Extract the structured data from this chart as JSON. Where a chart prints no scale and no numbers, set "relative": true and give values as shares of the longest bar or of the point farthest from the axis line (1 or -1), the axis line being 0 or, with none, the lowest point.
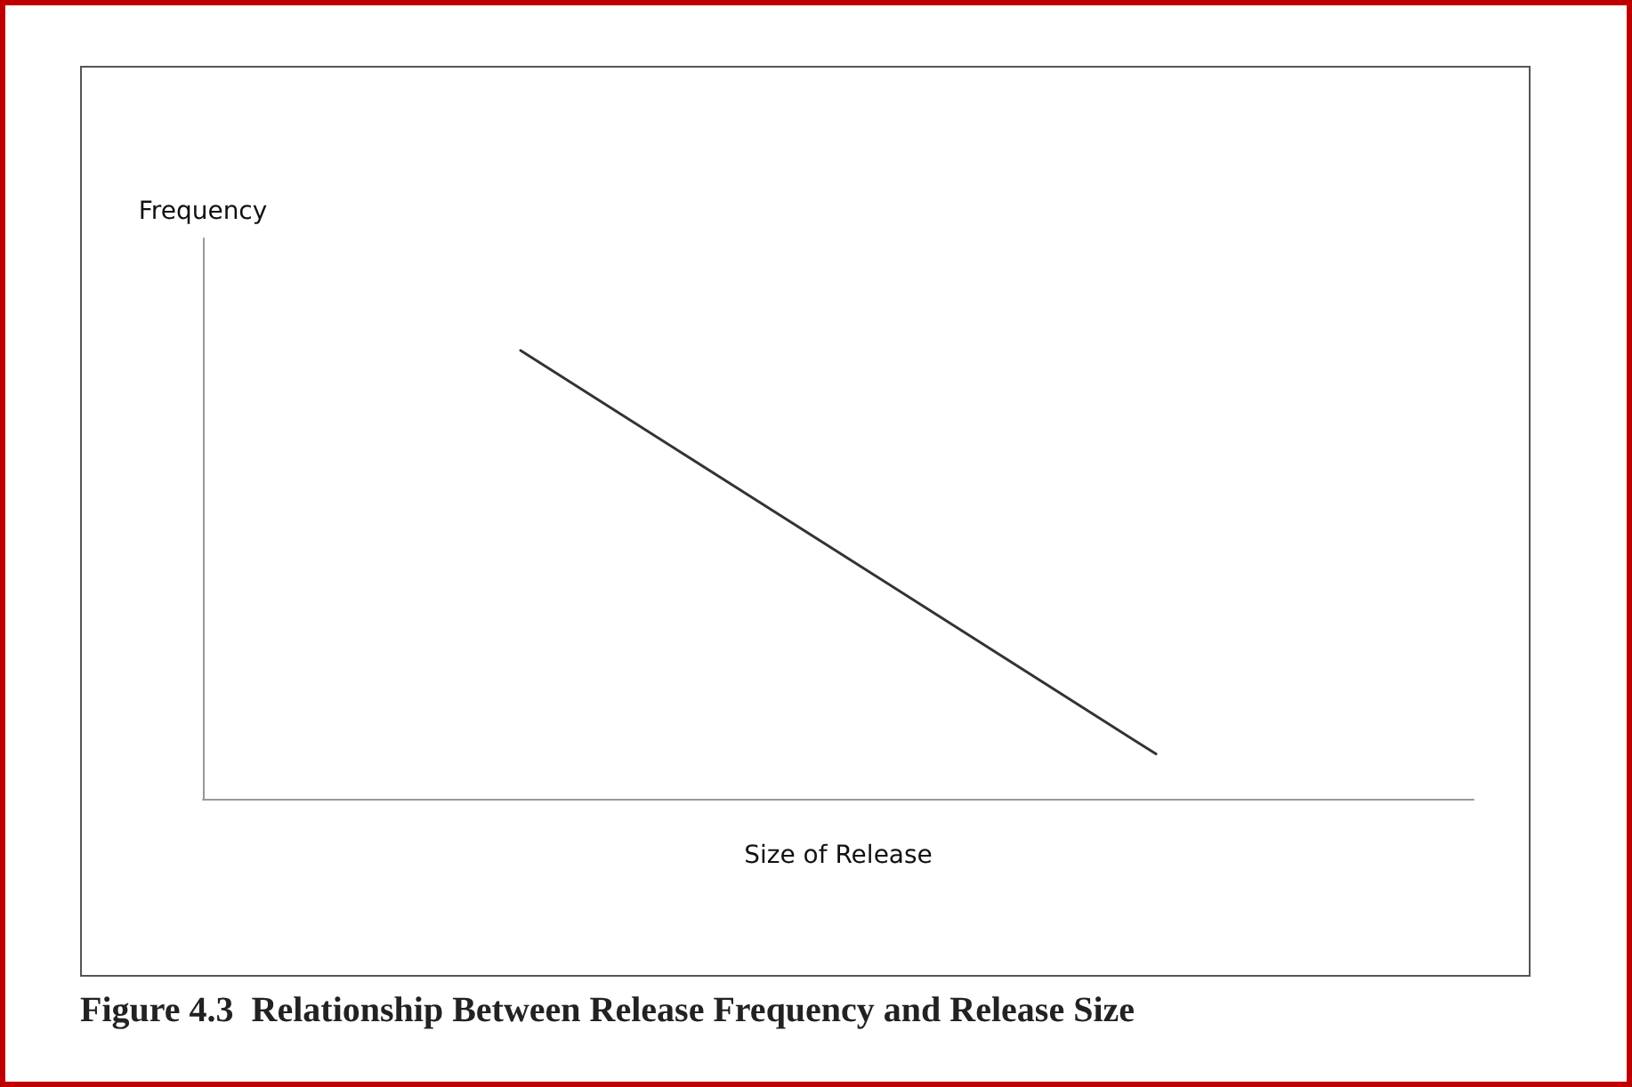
{
  "chart_data": {
    "type": "line",
    "relative": true,
    "xlabel": "Size of Release",
    "ylabel": "Frequency",
    "categories": [
      null,
      null
    ],
    "series": [
      {
        "color": "#333333",
        "values": [
          1,
          0.1
        ]
      }
    ],
    "grid": false,
    "marker": "none",
    "line_style": "solid",
    "annotations": [
      "Figure 4.3  Relationship Between Release Frequency and Release Size"
    ]
  }
}
